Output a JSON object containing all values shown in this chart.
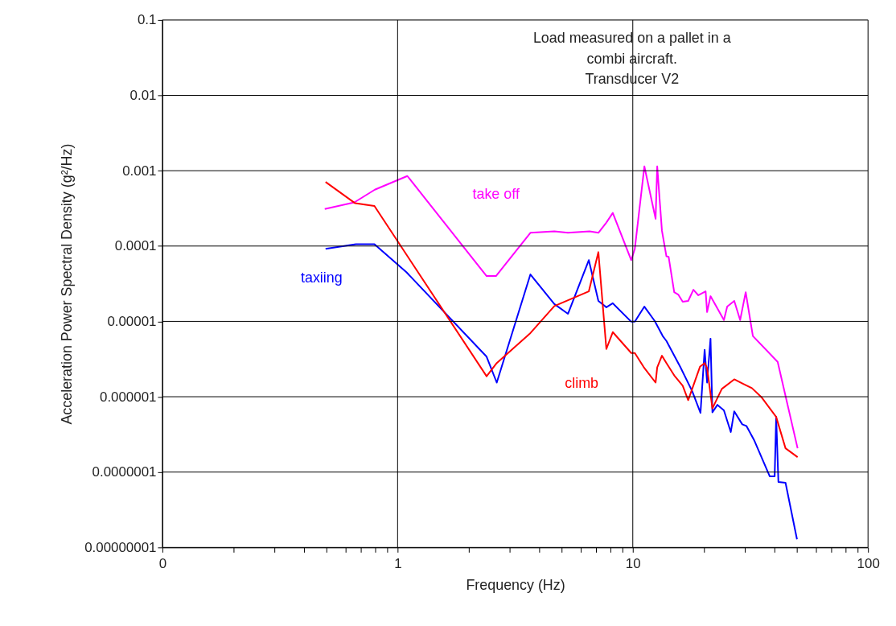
{
  "chart_data": {
    "type": "line",
    "xlabel": "Frequency (Hz)",
    "ylabel": "Acceleration Power Spectral Density (g²/Hz)",
    "annotations": [
      "Load measured on a pallet in a\ncombi aircraft.\nTransducer V2"
    ],
    "log": "xy",
    "grid": true,
    "line_style": "solid",
    "marker": "none",
    "xlim": [
      0.1,
      100
    ],
    "ylim": [
      1e-08,
      0.1
    ],
    "xticks": [
      {
        "value": 0.1,
        "label": "0"
      },
      {
        "value": 0.2,
        "label": null
      },
      {
        "value": 0.3,
        "label": null
      },
      {
        "value": 0.4,
        "label": null
      },
      {
        "value": 0.5,
        "label": null
      },
      {
        "value": 0.6,
        "label": null
      },
      {
        "value": 0.7,
        "label": null
      },
      {
        "value": 0.8,
        "label": null
      },
      {
        "value": 0.9,
        "label": null
      },
      {
        "value": 1,
        "label": "1"
      },
      {
        "value": 2,
        "label": null
      },
      {
        "value": 3,
        "label": null
      },
      {
        "value": 4,
        "label": null
      },
      {
        "value": 5,
        "label": null
      },
      {
        "value": 6,
        "label": null
      },
      {
        "value": 7,
        "label": null
      },
      {
        "value": 8,
        "label": null
      },
      {
        "value": 9,
        "label": null
      },
      {
        "value": 10,
        "label": "10"
      },
      {
        "value": 20,
        "label": null
      },
      {
        "value": 30,
        "label": null
      },
      {
        "value": 40,
        "label": null
      },
      {
        "value": 50,
        "label": null
      },
      {
        "value": 60,
        "label": null
      },
      {
        "value": 70,
        "label": null
      },
      {
        "value": 80,
        "label": null
      },
      {
        "value": 90,
        "label": null
      },
      {
        "value": 100,
        "label": "100"
      }
    ],
    "yticks": [
      {
        "value": 1e-08,
        "label": "0.00000001"
      },
      {
        "value": 1e-07,
        "label": "0.0000001"
      },
      {
        "value": 1e-06,
        "label": "0.000001"
      },
      {
        "value": 1e-05,
        "label": "0.00001"
      },
      {
        "value": 0.0001,
        "label": "0.0001"
      },
      {
        "value": 0.001,
        "label": "0.001"
      },
      {
        "value": 0.01,
        "label": "0.01"
      },
      {
        "value": 0.1,
        "label": "0.1"
      }
    ],
    "series": [
      {
        "name": "take off",
        "color": "#ff00ff",
        "x": [
          0.49,
          0.655,
          0.8,
          1.1,
          2.39,
          2.62,
          3.67,
          4.64,
          5.3,
          6.55,
          7.14,
          7.72,
          8.22,
          9.85,
          10.2,
          11.2,
          12.5,
          12.7,
          13.3,
          13.9,
          14.2,
          15.0,
          15.6,
          16.3,
          17.2,
          18.1,
          19.0,
          20.4,
          20.7,
          21.4,
          24.4,
          25.2,
          27.0,
          28.6,
          30.2,
          32.4,
          41.3,
          50.2
        ],
        "values": [
          0.00031,
          0.00038,
          0.00056,
          0.00085,
          4e-05,
          4e-05,
          0.00015,
          0.000157,
          0.00015,
          0.000157,
          0.00015,
          0.000205,
          0.000275,
          6.5e-05,
          9.2e-05,
          0.00114,
          0.00023,
          0.00114,
          0.00016,
          7.3e-05,
          7.2e-05,
          2.44e-05,
          2.27e-05,
          1.82e-05,
          1.87e-05,
          2.63e-05,
          2.22e-05,
          2.5e-05,
          1.33e-05,
          2.16e-05,
          1.04e-05,
          1.57e-05,
          1.87e-05,
          1.04e-05,
          2.44e-05,
          6.4e-06,
          2.9e-06,
          2.07e-07
        ]
      },
      {
        "name": "taxiing",
        "color": "#0000ff",
        "x": [
          0.494,
          0.665,
          0.797,
          1.09,
          2.39,
          2.64,
          3.67,
          4.64,
          5.3,
          6.5,
          7.14,
          7.72,
          8.22,
          9.85,
          10.2,
          11.2,
          12.4,
          13.4,
          13.9,
          15.9,
          17.9,
          19.4,
          20.2,
          20.7,
          21.4,
          21.8,
          22.9,
          24.4,
          26.1,
          27.0,
          29.2,
          30.4,
          32.9,
          38.2,
          40.1,
          40.7,
          41.6,
          44.6,
          49.9
        ],
        "values": [
          9.2e-05,
          0.000106,
          0.000106,
          4.5e-05,
          3.4e-06,
          1.54e-06,
          4.2e-05,
          1.7e-05,
          1.26e-05,
          6.5e-05,
          1.87e-05,
          1.54e-05,
          1.74e-05,
          9.9e-06,
          9.9e-06,
          1.57e-05,
          1.01e-05,
          6.4e-06,
          5.5e-06,
          2.5e-06,
          1.18e-06,
          6.1e-07,
          4.2e-06,
          1.54e-06,
          5.9e-06,
          6.2e-07,
          7.8e-07,
          6.6e-07,
          3.4e-07,
          6.4e-07,
          4.3e-07,
          4.1e-07,
          2.6e-07,
          8.8e-08,
          8.8e-08,
          5.4e-07,
          7.4e-08,
          7.2e-08,
          1.28e-08
        ]
      },
      {
        "name": "climb",
        "color": "#ff0000",
        "x": [
          0.494,
          0.66,
          0.797,
          2.39,
          2.64,
          3.67,
          4.64,
          6.5,
          7.14,
          7.72,
          8.22,
          9.85,
          10.2,
          11.2,
          12.5,
          12.7,
          13.3,
          13.9,
          15.0,
          16.3,
          17.2,
          19.3,
          20.2,
          20.7,
          21.8,
          23.9,
          27.0,
          29.6,
          32.1,
          35.2,
          40.7,
          44.6,
          50.2
        ],
        "values": [
          0.00071,
          0.00037,
          0.00034,
          1.87e-06,
          2.8e-06,
          7e-06,
          1.6e-05,
          2.5e-05,
          8.3e-05,
          4.3e-06,
          7.2e-06,
          3.8e-06,
          3.8e-06,
          2.4e-06,
          1.54e-06,
          2.45e-06,
          3.5e-06,
          2.8e-06,
          1.92e-06,
          1.4e-06,
          9e-07,
          2.5e-06,
          2.8e-06,
          2.4e-06,
          7e-07,
          1.27e-06,
          1.7e-06,
          1.47e-06,
          1.3e-06,
          9.9e-07,
          5.4e-07,
          2.07e-07,
          1.58e-07
        ]
      }
    ]
  }
}
